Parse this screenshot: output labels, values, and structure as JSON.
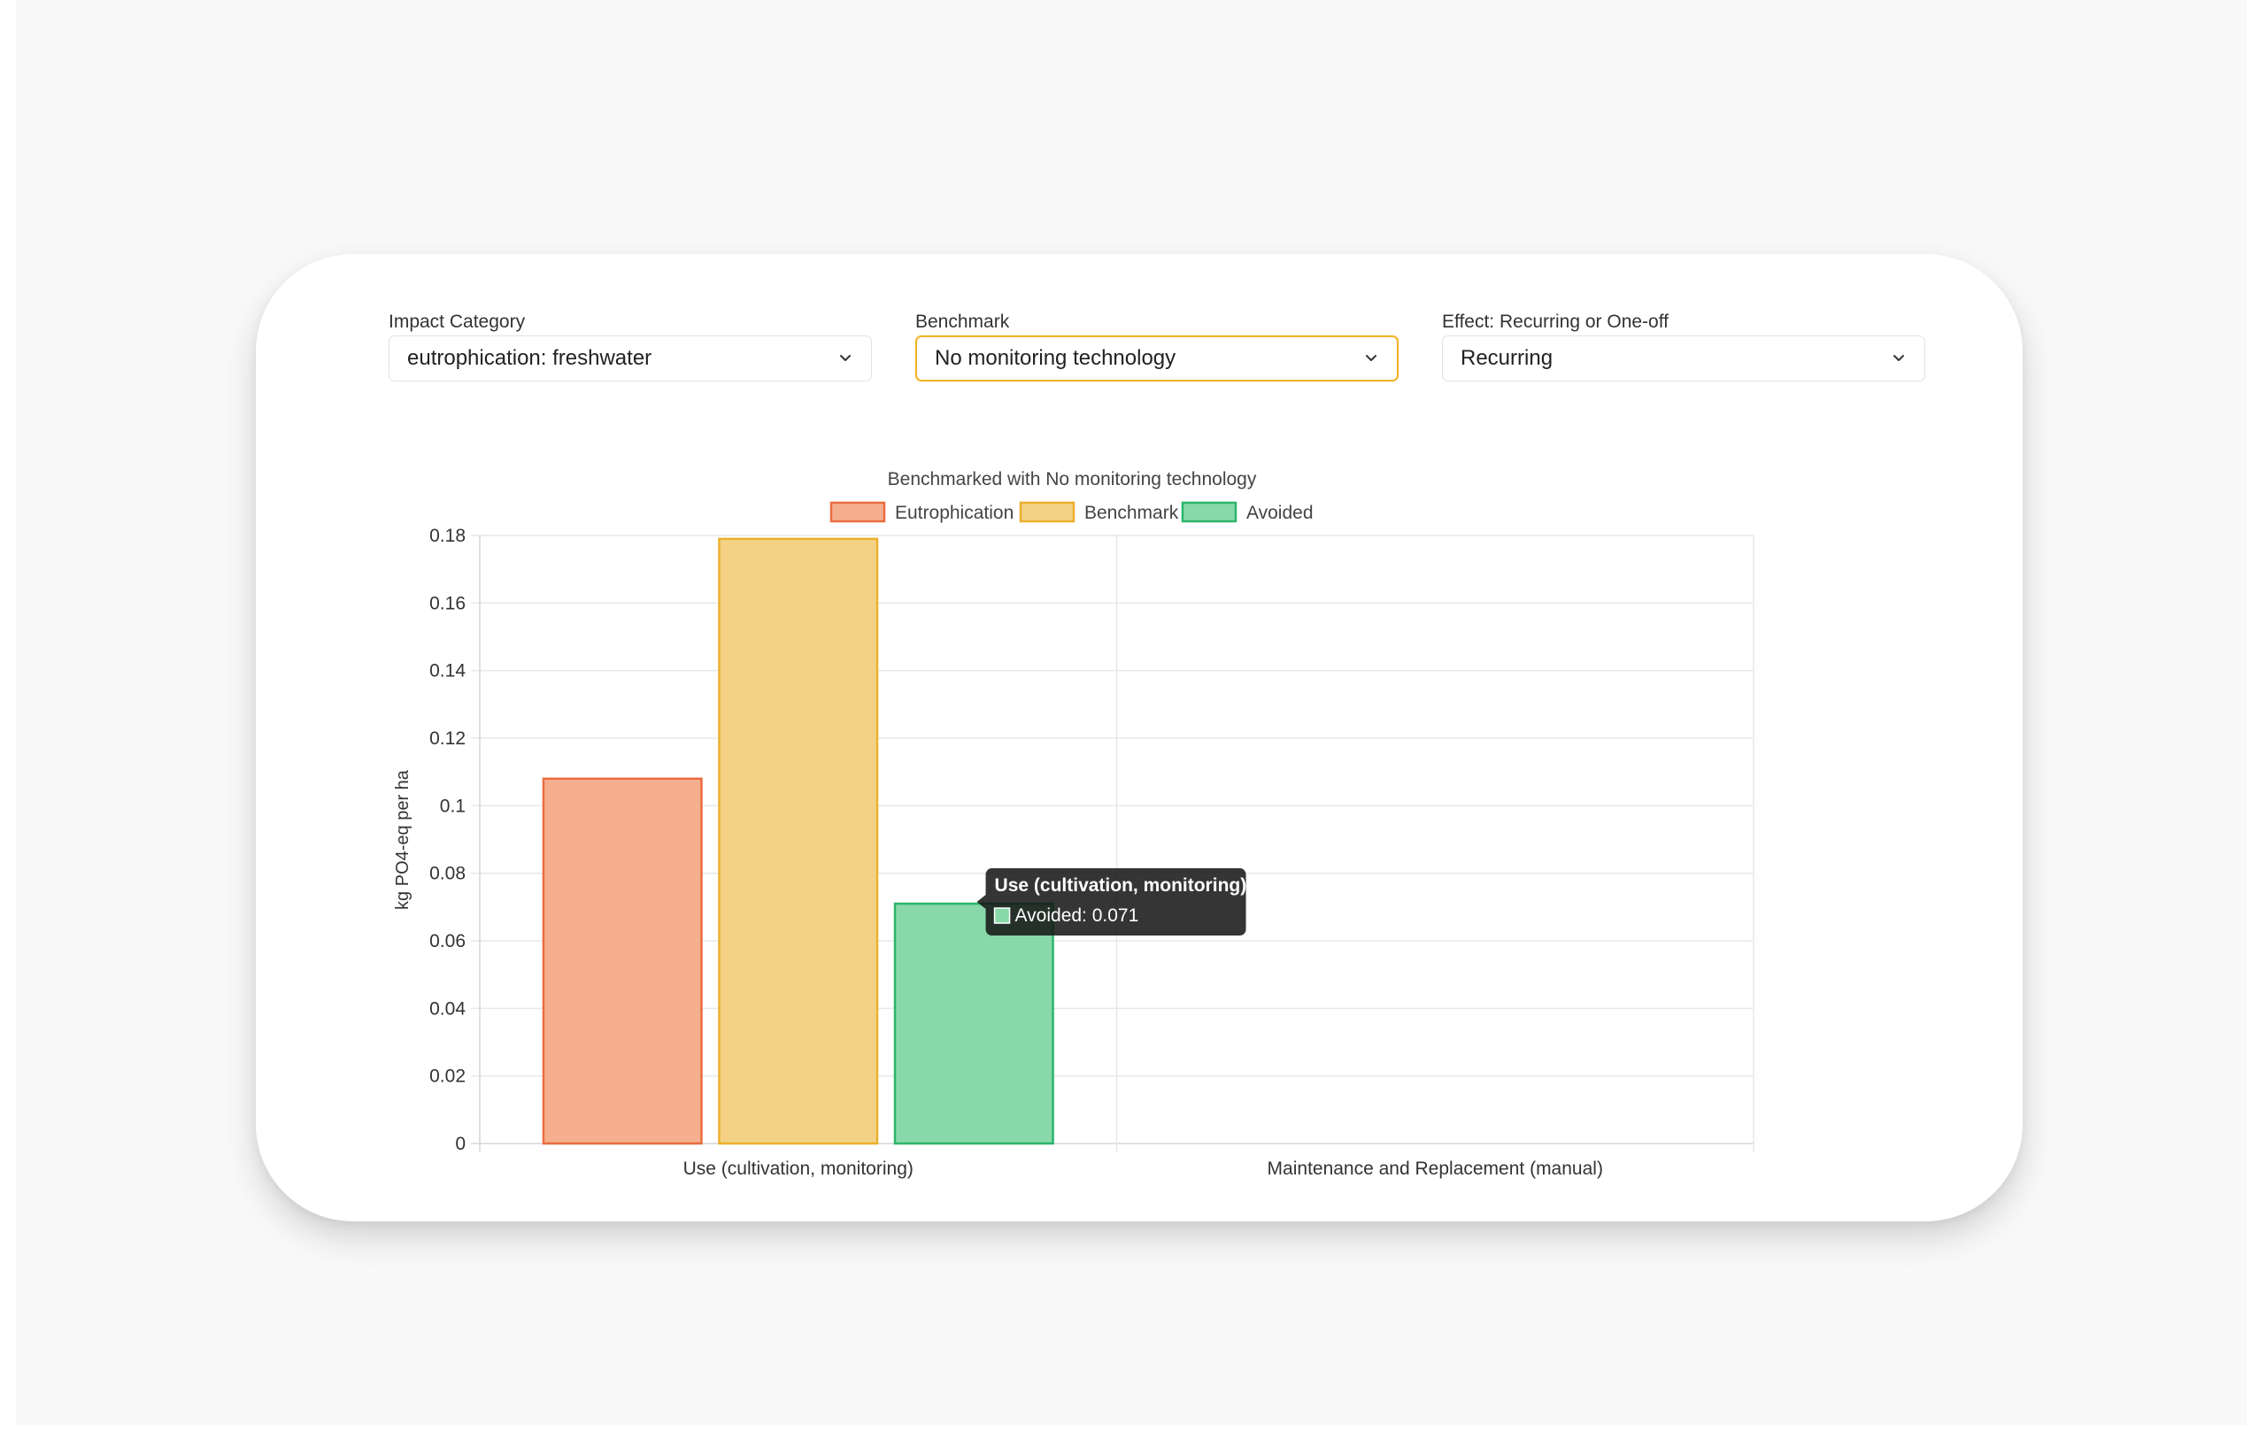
{
  "filters": {
    "impact": {
      "label": "Impact Category",
      "value": "eutrophication: freshwater"
    },
    "benchmark": {
      "label": "Benchmark",
      "value": "No monitoring technology"
    },
    "effect": {
      "label": "Effect: Recurring or One-off",
      "value": "Recurring"
    }
  },
  "chart_data": {
    "type": "bar",
    "title": "Benchmarked with No monitoring technology",
    "ylabel": "kg PO4-eq per ha",
    "xlabel": "",
    "categories": [
      "Use (cultivation, monitoring)",
      "Maintenance and Replacement (manual)"
    ],
    "ylim": [
      0,
      0.18
    ],
    "yticks": [
      "0",
      "0.02",
      "0.04",
      "0.06",
      "0.08",
      "0.1",
      "0.12",
      "0.14",
      "0.16",
      "0.18"
    ],
    "grid": true,
    "legend_position": "top",
    "series": [
      {
        "name": "Eutrophication",
        "values": [
          0.108,
          0
        ],
        "fill": "#f5af8e",
        "stroke": "#ea6d3f"
      },
      {
        "name": "Benchmark",
        "values": [
          0.179,
          0
        ],
        "fill": "#f3d286",
        "stroke": "#ebb02d"
      },
      {
        "name": "Avoided",
        "values": [
          0.071,
          0
        ],
        "fill": "#89d8a9",
        "stroke": "#2bb56a"
      }
    ],
    "tooltip": {
      "title": "Use (cultivation, monitoring)",
      "series": "Avoided",
      "text": "Avoided: 0.071"
    }
  }
}
